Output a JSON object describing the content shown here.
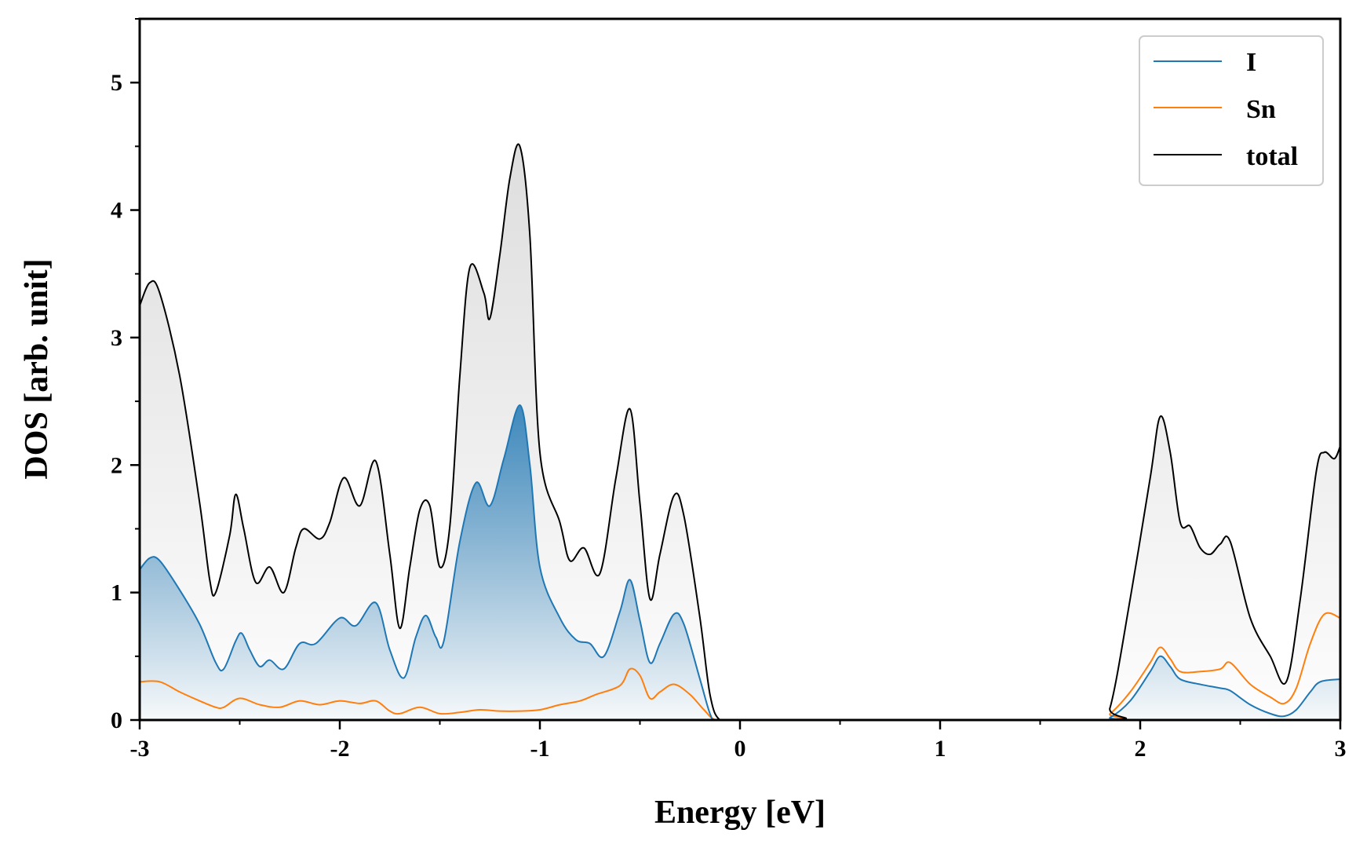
{
  "chart_data": {
    "type": "area",
    "title": "",
    "xlabel": "Energy [eV]",
    "ylabel": "DOS [arb. unit]",
    "xlim": [
      -3,
      3
    ],
    "ylim": [
      0,
      5.5
    ],
    "xticks": [
      -3,
      -2,
      -1,
      0,
      1,
      2,
      3
    ],
    "xtick_labels": [
      "-3",
      "-2",
      "-1",
      "0",
      "1",
      "2",
      "3"
    ],
    "yticks": [
      0,
      1,
      2,
      3,
      4,
      5
    ],
    "ytick_labels": [
      "0",
      "1",
      "2",
      "3",
      "4",
      "5"
    ],
    "grid": false,
    "legend_position": "top-right",
    "series": [
      {
        "name": "I",
        "color": "#1f77b4",
        "filled": true,
        "points": [
          [
            -3.0,
            1.18
          ],
          [
            -2.95,
            1.27
          ],
          [
            -2.9,
            1.25
          ],
          [
            -2.8,
            1.02
          ],
          [
            -2.7,
            0.75
          ],
          [
            -2.62,
            0.45
          ],
          [
            -2.58,
            0.4
          ],
          [
            -2.52,
            0.62
          ],
          [
            -2.49,
            0.68
          ],
          [
            -2.45,
            0.55
          ],
          [
            -2.4,
            0.42
          ],
          [
            -2.35,
            0.47
          ],
          [
            -2.28,
            0.4
          ],
          [
            -2.2,
            0.6
          ],
          [
            -2.12,
            0.6
          ],
          [
            -2.0,
            0.8
          ],
          [
            -1.92,
            0.74
          ],
          [
            -1.82,
            0.92
          ],
          [
            -1.75,
            0.55
          ],
          [
            -1.68,
            0.33
          ],
          [
            -1.62,
            0.65
          ],
          [
            -1.57,
            0.82
          ],
          [
            -1.52,
            0.65
          ],
          [
            -1.48,
            0.62
          ],
          [
            -1.4,
            1.4
          ],
          [
            -1.32,
            1.86
          ],
          [
            -1.25,
            1.68
          ],
          [
            -1.18,
            2.05
          ],
          [
            -1.1,
            2.47
          ],
          [
            -1.05,
            2.0
          ],
          [
            -1.0,
            1.2
          ],
          [
            -0.9,
            0.8
          ],
          [
            -0.82,
            0.63
          ],
          [
            -0.75,
            0.6
          ],
          [
            -0.68,
            0.5
          ],
          [
            -0.6,
            0.85
          ],
          [
            -0.55,
            1.1
          ],
          [
            -0.5,
            0.78
          ],
          [
            -0.45,
            0.45
          ],
          [
            -0.4,
            0.6
          ],
          [
            -0.33,
            0.83
          ],
          [
            -0.28,
            0.75
          ],
          [
            -0.2,
            0.32
          ],
          [
            -0.15,
            0.05
          ],
          [
            -0.12,
            0.0
          ],
          [
            0.0,
            0.0
          ],
          [
            1.78,
            0.0
          ],
          [
            1.85,
            0.02
          ],
          [
            1.95,
            0.15
          ],
          [
            2.05,
            0.38
          ],
          [
            2.1,
            0.5
          ],
          [
            2.15,
            0.42
          ],
          [
            2.2,
            0.32
          ],
          [
            2.3,
            0.28
          ],
          [
            2.4,
            0.25
          ],
          [
            2.45,
            0.23
          ],
          [
            2.55,
            0.12
          ],
          [
            2.65,
            0.05
          ],
          [
            2.72,
            0.03
          ],
          [
            2.78,
            0.08
          ],
          [
            2.85,
            0.22
          ],
          [
            2.9,
            0.3
          ],
          [
            3.0,
            0.32
          ]
        ]
      },
      {
        "name": "Sn",
        "color": "#ff7f0e",
        "filled": false,
        "points": [
          [
            -3.0,
            0.3
          ],
          [
            -2.9,
            0.3
          ],
          [
            -2.8,
            0.22
          ],
          [
            -2.7,
            0.15
          ],
          [
            -2.62,
            0.1
          ],
          [
            -2.58,
            0.1
          ],
          [
            -2.5,
            0.17
          ],
          [
            -2.4,
            0.12
          ],
          [
            -2.3,
            0.1
          ],
          [
            -2.2,
            0.15
          ],
          [
            -2.1,
            0.12
          ],
          [
            -2.0,
            0.15
          ],
          [
            -1.9,
            0.13
          ],
          [
            -1.82,
            0.15
          ],
          [
            -1.75,
            0.07
          ],
          [
            -1.7,
            0.05
          ],
          [
            -1.6,
            0.1
          ],
          [
            -1.5,
            0.05
          ],
          [
            -1.4,
            0.06
          ],
          [
            -1.3,
            0.08
          ],
          [
            -1.2,
            0.07
          ],
          [
            -1.1,
            0.07
          ],
          [
            -1.0,
            0.08
          ],
          [
            -0.9,
            0.12
          ],
          [
            -0.8,
            0.15
          ],
          [
            -0.72,
            0.2
          ],
          [
            -0.6,
            0.27
          ],
          [
            -0.55,
            0.4
          ],
          [
            -0.5,
            0.35
          ],
          [
            -0.45,
            0.17
          ],
          [
            -0.4,
            0.22
          ],
          [
            -0.33,
            0.28
          ],
          [
            -0.25,
            0.2
          ],
          [
            -0.18,
            0.08
          ],
          [
            -0.12,
            0.0
          ],
          [
            0.0,
            0.0
          ],
          [
            1.78,
            0.0
          ],
          [
            1.85,
            0.05
          ],
          [
            1.95,
            0.22
          ],
          [
            2.05,
            0.45
          ],
          [
            2.1,
            0.57
          ],
          [
            2.15,
            0.48
          ],
          [
            2.2,
            0.38
          ],
          [
            2.3,
            0.38
          ],
          [
            2.4,
            0.4
          ],
          [
            2.45,
            0.45
          ],
          [
            2.55,
            0.28
          ],
          [
            2.65,
            0.18
          ],
          [
            2.72,
            0.13
          ],
          [
            2.78,
            0.25
          ],
          [
            2.85,
            0.6
          ],
          [
            2.92,
            0.83
          ],
          [
            3.0,
            0.8
          ]
        ]
      },
      {
        "name": "total",
        "color": "#000000",
        "filled": true,
        "points": [
          [
            -3.0,
            3.25
          ],
          [
            -2.95,
            3.43
          ],
          [
            -2.9,
            3.35
          ],
          [
            -2.8,
            2.7
          ],
          [
            -2.7,
            1.7
          ],
          [
            -2.65,
            1.1
          ],
          [
            -2.62,
            1.0
          ],
          [
            -2.55,
            1.45
          ],
          [
            -2.52,
            1.77
          ],
          [
            -2.48,
            1.5
          ],
          [
            -2.42,
            1.08
          ],
          [
            -2.35,
            1.2
          ],
          [
            -2.28,
            1.0
          ],
          [
            -2.22,
            1.35
          ],
          [
            -2.18,
            1.5
          ],
          [
            -2.1,
            1.42
          ],
          [
            -2.05,
            1.55
          ],
          [
            -1.98,
            1.9
          ],
          [
            -1.9,
            1.68
          ],
          [
            -1.82,
            2.03
          ],
          [
            -1.75,
            1.3
          ],
          [
            -1.7,
            0.72
          ],
          [
            -1.65,
            1.2
          ],
          [
            -1.6,
            1.65
          ],
          [
            -1.55,
            1.68
          ],
          [
            -1.5,
            1.2
          ],
          [
            -1.45,
            1.52
          ],
          [
            -1.4,
            2.7
          ],
          [
            -1.35,
            3.55
          ],
          [
            -1.28,
            3.35
          ],
          [
            -1.25,
            3.15
          ],
          [
            -1.2,
            3.65
          ],
          [
            -1.15,
            4.25
          ],
          [
            -1.1,
            4.5
          ],
          [
            -1.05,
            3.8
          ],
          [
            -1.0,
            2.1
          ],
          [
            -0.9,
            1.55
          ],
          [
            -0.85,
            1.25
          ],
          [
            -0.78,
            1.35
          ],
          [
            -0.7,
            1.15
          ],
          [
            -0.62,
            1.9
          ],
          [
            -0.55,
            2.44
          ],
          [
            -0.5,
            1.7
          ],
          [
            -0.45,
            0.95
          ],
          [
            -0.4,
            1.3
          ],
          [
            -0.33,
            1.76
          ],
          [
            -0.28,
            1.6
          ],
          [
            -0.2,
            0.8
          ],
          [
            -0.15,
            0.2
          ],
          [
            -0.1,
            0.0
          ],
          [
            0.0,
            0.0
          ],
          [
            1.78,
            0.0
          ],
          [
            1.85,
            0.1
          ],
          [
            1.95,
            0.95
          ],
          [
            2.05,
            1.9
          ],
          [
            2.1,
            2.38
          ],
          [
            2.15,
            2.1
          ],
          [
            2.2,
            1.55
          ],
          [
            2.25,
            1.52
          ],
          [
            2.3,
            1.35
          ],
          [
            2.35,
            1.3
          ],
          [
            2.4,
            1.38
          ],
          [
            2.45,
            1.4
          ],
          [
            2.55,
            0.8
          ],
          [
            2.65,
            0.5
          ],
          [
            2.73,
            0.3
          ],
          [
            2.8,
            0.95
          ],
          [
            2.88,
            1.95
          ],
          [
            2.92,
            2.1
          ],
          [
            2.97,
            2.05
          ],
          [
            3.0,
            2.15
          ]
        ]
      }
    ]
  }
}
